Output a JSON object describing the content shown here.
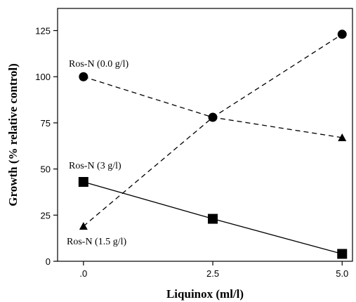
{
  "chart_data": {
    "type": "line",
    "xlabel": "Liquinox (ml/l)",
    "ylabel": "Growth (% relative control)",
    "x": [
      0.0,
      2.5,
      5.0
    ],
    "x_tick_labels": [
      ".0",
      "2.5",
      "5.0"
    ],
    "y_ticks": [
      0,
      25,
      50,
      75,
      100,
      125
    ],
    "xlim": [
      -0.5,
      5.2
    ],
    "ylim": [
      0,
      137
    ],
    "grid": false,
    "series": [
      {
        "name": "Ros-N (0.0 g/l)",
        "marker": "circle",
        "line": "dashed",
        "values": [
          100,
          78,
          67
        ],
        "marker_shown": [
          true,
          true,
          false
        ]
      },
      {
        "name": "Ros-N (1.5 g/l)",
        "marker": "triangle",
        "line": "dashed",
        "values": [
          19,
          78,
          123
        ],
        "marker_shown": [
          true,
          false,
          false
        ]
      },
      {
        "name": "Ros-N (3 g/l)",
        "marker": "square",
        "line": "solid",
        "values": [
          43,
          23,
          4
        ],
        "marker_shown": [
          true,
          true,
          true
        ]
      }
    ],
    "extra_markers": [
      {
        "marker": "circle",
        "x": 5.0,
        "y": 123
      },
      {
        "marker": "triangle",
        "x": 5.0,
        "y": 67
      }
    ]
  }
}
